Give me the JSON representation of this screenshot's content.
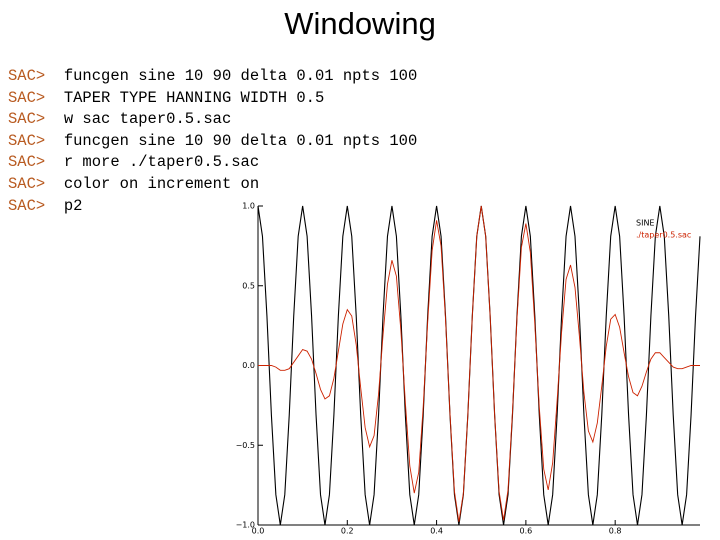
{
  "title": "Windowing",
  "terminal": [
    {
      "prompt": "SAC>",
      "command": "funcgen sine 10 90 delta 0.01 npts 100"
    },
    {
      "prompt": "SAC>",
      "command": "TAPER TYPE HANNING WIDTH 0.5"
    },
    {
      "prompt": "SAC>",
      "command": "w sac taper0.5.sac"
    },
    {
      "prompt": "SAC>",
      "command": "funcgen sine 10 90 delta 0.01 npts 100"
    },
    {
      "prompt": "SAC>",
      "command": "r more ./taper0.5.sac"
    },
    {
      "prompt": "SAC>",
      "command": "color on increment on"
    },
    {
      "prompt": "SAC>",
      "command": "p2"
    }
  ],
  "chart_data": {
    "type": "line",
    "x": [
      0,
      0.01,
      0.02,
      0.03,
      0.04,
      0.05,
      0.06,
      0.07,
      0.08,
      0.09,
      0.1,
      0.11,
      0.12,
      0.13,
      0.14,
      0.15,
      0.16,
      0.17,
      0.18,
      0.19,
      0.2,
      0.21,
      0.22,
      0.23,
      0.24,
      0.25,
      0.26,
      0.27,
      0.28,
      0.29,
      0.3,
      0.31,
      0.32,
      0.33,
      0.34,
      0.35,
      0.36,
      0.37,
      0.38,
      0.39,
      0.4,
      0.41,
      0.42,
      0.43,
      0.44,
      0.45,
      0.46,
      0.47,
      0.48,
      0.49,
      0.5,
      0.51,
      0.52,
      0.53,
      0.54,
      0.55,
      0.56,
      0.57,
      0.58,
      0.59,
      0.6,
      0.61,
      0.62,
      0.63,
      0.64,
      0.65,
      0.66,
      0.67,
      0.68,
      0.69,
      0.7,
      0.71,
      0.72,
      0.73,
      0.74,
      0.75,
      0.76,
      0.77,
      0.78,
      0.79,
      0.8,
      0.81,
      0.82,
      0.83,
      0.84,
      0.85,
      0.86,
      0.87,
      0.88,
      0.89,
      0.9,
      0.91,
      0.92,
      0.93,
      0.94,
      0.95,
      0.96,
      0.97,
      0.98,
      0.99
    ],
    "series": [
      {
        "name": "SINE",
        "color": "#000000",
        "values": [
          1,
          0.81,
          0.31,
          -0.31,
          -0.81,
          -1,
          -0.81,
          -0.31,
          0.31,
          0.81,
          1,
          0.81,
          0.31,
          -0.31,
          -0.81,
          -1,
          -0.81,
          -0.31,
          0.31,
          0.81,
          1,
          0.81,
          0.31,
          -0.31,
          -0.81,
          -1,
          -0.81,
          -0.31,
          0.31,
          0.81,
          1,
          0.81,
          0.31,
          -0.31,
          -0.81,
          -1,
          -0.81,
          -0.31,
          0.31,
          0.81,
          1,
          0.81,
          0.31,
          -0.31,
          -0.81,
          -1,
          -0.81,
          -0.31,
          0.31,
          0.81,
          1,
          0.81,
          0.31,
          -0.31,
          -0.81,
          -1,
          -0.81,
          -0.31,
          0.31,
          0.81,
          1,
          0.81,
          0.31,
          -0.31,
          -0.81,
          -1,
          -0.81,
          -0.31,
          0.31,
          0.81,
          1,
          0.81,
          0.31,
          -0.31,
          -0.81,
          -1,
          -0.81,
          -0.31,
          0.31,
          0.81,
          1,
          0.81,
          0.31,
          -0.31,
          -0.81,
          -1,
          -0.81,
          -0.31,
          0.31,
          0.81,
          1,
          0.81,
          0.31,
          -0.31,
          -0.81,
          -1,
          -0.81,
          -0.31,
          0.31,
          0.81
        ]
      },
      {
        "name": "./taper0.5.sac",
        "color": "#cc2200",
        "values": [
          0,
          0,
          0,
          0,
          -0.01,
          -0.03,
          -0.03,
          -0.02,
          0.02,
          0.06,
          0.1,
          0.09,
          0.04,
          -0.05,
          -0.15,
          -0.21,
          -0.19,
          -0.08,
          0.09,
          0.26,
          0.35,
          0.31,
          0.13,
          -0.14,
          -0.39,
          -0.51,
          -0.44,
          -0.18,
          0.19,
          0.51,
          0.66,
          0.56,
          0.22,
          -0.23,
          -0.63,
          -0.8,
          -0.67,
          -0.26,
          0.27,
          0.72,
          0.91,
          0.75,
          0.29,
          -0.3,
          -0.79,
          -0.98,
          -0.8,
          -0.31,
          0.31,
          0.81,
          1,
          0.81,
          0.31,
          -0.31,
          -0.79,
          -0.97,
          -0.78,
          -0.29,
          0.29,
          0.74,
          0.89,
          0.71,
          0.26,
          -0.26,
          -0.65,
          -0.78,
          -0.61,
          -0.22,
          0.21,
          0.54,
          0.63,
          0.49,
          0.18,
          -0.17,
          -0.41,
          -0.48,
          -0.36,
          -0.13,
          0.12,
          0.29,
          0.32,
          0.24,
          0.08,
          -0.07,
          -0.17,
          -0.19,
          -0.13,
          -0.04,
          0.04,
          0.08,
          0.08,
          0.05,
          0.02,
          -0.01,
          -0.02,
          -0.02,
          -0.01,
          0,
          0,
          0
        ]
      }
    ],
    "xlim": [
      0,
      0.99
    ],
    "ylim": [
      -1,
      1
    ],
    "xticks": [
      {
        "value": 0,
        "label": "0.0"
      },
      0.2,
      0.4,
      0.6,
      0.8
    ],
    "yticks": [
      {
        "value": -1,
        "label": "−1.0"
      },
      {
        "value": -0.5,
        "label": "−0.5"
      },
      {
        "value": 0,
        "label": "0.0"
      },
      0.5,
      {
        "value": 1,
        "label": "1.0"
      }
    ]
  }
}
